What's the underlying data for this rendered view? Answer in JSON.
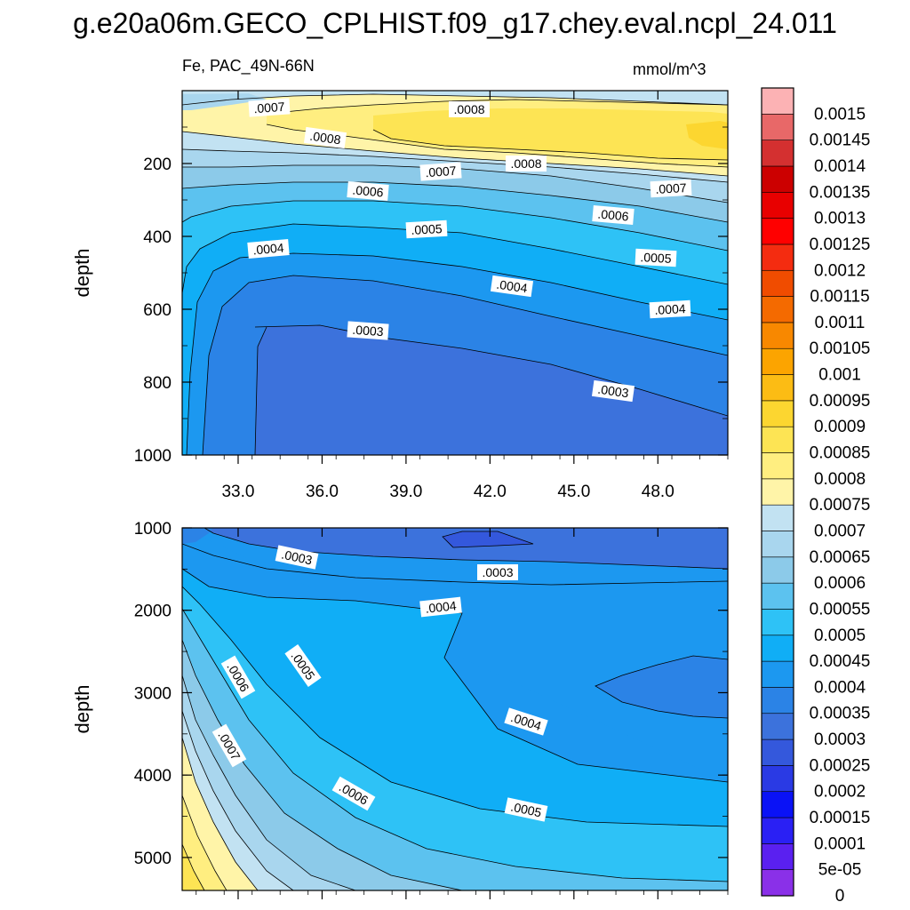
{
  "title": "g.e20a06m.GECO_CPLHIST.f09_g17.chey.eval.ncpl_24.011",
  "subtitle": {
    "left": "Fe, PAC_49N-66N",
    "right": "mmol/m^3"
  },
  "colors": {
    "frame": "#000000",
    "bins": [
      "#8a30e8",
      "#5a20f0",
      "#2a20f4",
      "#0a12f6",
      "#2a3ae4",
      "#3458dc",
      "#3c72dc",
      "#2b83e6",
      "#1c98f0",
      "#10aef6",
      "#2ec2f6",
      "#5cc2ef",
      "#8ccae9",
      "#a9d6ee",
      "#c2e2f2",
      "#fff4a8",
      "#ffee80",
      "#fde454",
      "#fcd630",
      "#fcbc14",
      "#fca400",
      "#f88800",
      "#f46a00",
      "#f04c00",
      "#f42c10",
      "#ff0000",
      "#e80000",
      "#cc0000",
      "#d43030",
      "#e86868",
      "#fcb2b4"
    ]
  },
  "chart_data": [
    {
      "type": "contour",
      "panel": "top",
      "xlabel": "",
      "ylabel": "depth",
      "xticks": [
        "33.0",
        "36.0",
        "39.0",
        "42.0",
        "45.0",
        "48.0"
      ],
      "yticks": [
        "200",
        "400",
        "600",
        "800",
        "1000"
      ],
      "ylim": [
        1000,
        0
      ],
      "contour_labels": [
        ".0007",
        ".0008",
        ".0008",
        ".0007",
        ".0008",
        ".0007",
        ".0006",
        ".0006",
        ".0005",
        ".0005",
        ".0004",
        ".0004",
        ".0004",
        ".0003",
        ".0003"
      ]
    },
    {
      "type": "contour",
      "panel": "bottom",
      "xlabel": "",
      "ylabel": "depth",
      "xticks": [],
      "yticks": [
        "1000",
        "2000",
        "3000",
        "4000",
        "5000"
      ],
      "ylim": [
        5400,
        1000
      ],
      "contour_labels": [
        ".0003",
        ".0003",
        ".0004",
        ".0005",
        ".0006",
        ".0007",
        ".0004",
        ".0006",
        ".0005"
      ]
    }
  ],
  "colorbar": {
    "labels": [
      "0.0015",
      "0.00145",
      "0.0014",
      "0.00135",
      "0.0013",
      "0.00125",
      "0.0012",
      "0.00115",
      "0.0011",
      "0.00105",
      "0.001",
      "0.00095",
      "0.0009",
      "0.00085",
      "0.0008",
      "0.00075",
      "0.0007",
      "0.00065",
      "0.0006",
      "0.00055",
      "0.0005",
      "0.00045",
      "0.0004",
      "0.00035",
      "0.0003",
      "0.00025",
      "0.0002",
      "0.00015",
      "0.0001",
      "5e-05",
      "0"
    ]
  }
}
